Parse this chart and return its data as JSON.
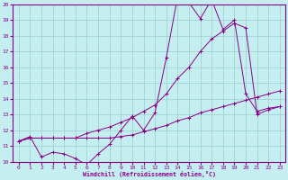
{
  "xlabel": "Windchill (Refroidissement éolien,°C)",
  "ylabel": "",
  "xlim": [
    -0.5,
    23.5
  ],
  "ylim": [
    10,
    20
  ],
  "xticks": [
    0,
    1,
    2,
    3,
    4,
    5,
    6,
    7,
    8,
    9,
    10,
    11,
    12,
    13,
    14,
    15,
    16,
    17,
    18,
    19,
    20,
    21,
    22,
    23
  ],
  "yticks": [
    10,
    11,
    12,
    13,
    14,
    15,
    16,
    17,
    18,
    19,
    20
  ],
  "bg_color": "#c5eef0",
  "line_color": "#880088",
  "grid_color": "#99cccc",
  "line1_x": [
    0,
    1,
    2,
    3,
    4,
    5,
    6,
    7,
    8,
    9,
    10,
    11,
    12,
    13,
    14,
    15,
    16,
    17,
    18,
    19,
    20,
    21,
    22,
    23
  ],
  "line1_y": [
    11.3,
    11.6,
    10.3,
    10.6,
    10.5,
    10.2,
    9.8,
    10.5,
    11.1,
    12.0,
    12.9,
    12.0,
    13.1,
    16.6,
    20.5,
    20.1,
    19.1,
    20.3,
    18.4,
    19.0,
    14.3,
    13.2,
    13.4,
    13.5
  ],
  "line2_x": [
    0,
    1,
    2,
    3,
    4,
    5,
    6,
    7,
    8,
    9,
    10,
    11,
    12,
    13,
    14,
    15,
    16,
    17,
    18,
    19,
    20,
    21,
    22,
    23
  ],
  "line2_y": [
    11.3,
    11.5,
    11.5,
    11.5,
    11.5,
    11.5,
    11.8,
    12.0,
    12.2,
    12.5,
    12.8,
    13.2,
    13.6,
    14.3,
    15.3,
    16.0,
    17.0,
    17.8,
    18.3,
    18.8,
    18.5,
    13.0,
    13.3,
    13.5
  ],
  "line3_x": [
    0,
    1,
    2,
    3,
    4,
    5,
    6,
    7,
    8,
    9,
    10,
    11,
    12,
    13,
    14,
    15,
    16,
    17,
    18,
    19,
    20,
    21,
    22,
    23
  ],
  "line3_y": [
    11.3,
    11.5,
    11.5,
    11.5,
    11.5,
    11.5,
    11.5,
    11.5,
    11.5,
    11.6,
    11.7,
    11.9,
    12.1,
    12.3,
    12.6,
    12.8,
    13.1,
    13.3,
    13.5,
    13.7,
    13.9,
    14.1,
    14.3,
    14.5
  ]
}
